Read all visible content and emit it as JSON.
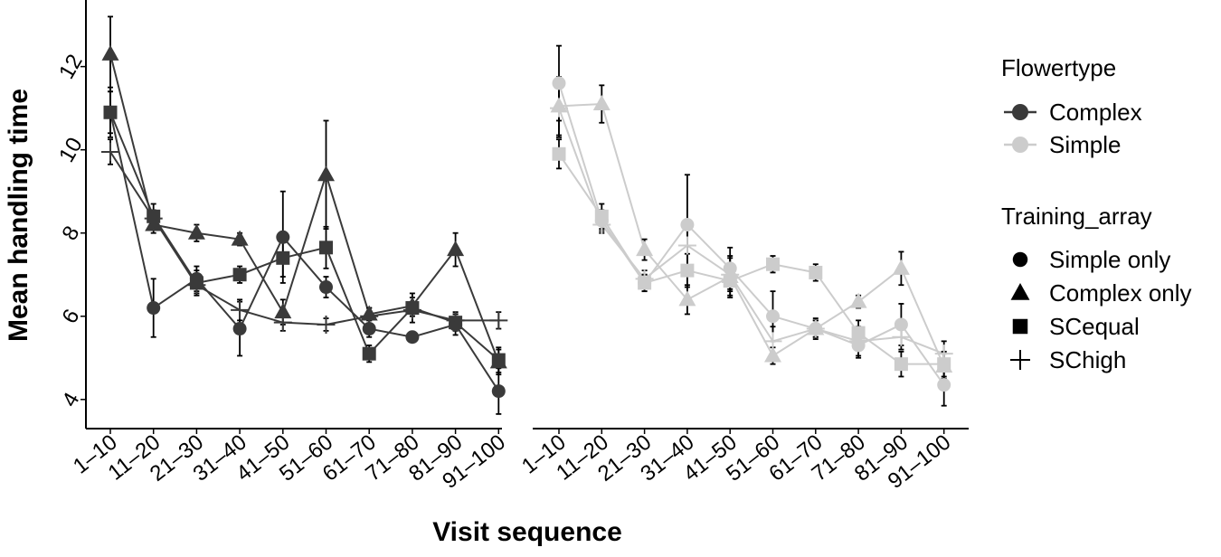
{
  "chart_data": {
    "type": "line",
    "xlabel": "Visit sequence",
    "ylabel": "Mean handling time",
    "ylim": [
      3.3,
      13.6
    ],
    "yticks": [
      4,
      6,
      8,
      10,
      12
    ],
    "categories": [
      "1–10",
      "11–20",
      "21–30",
      "31–40",
      "41–50",
      "51–60",
      "61–70",
      "71–80",
      "81–90",
      "91–100"
    ],
    "facet_var": "Flowertype",
    "panels": [
      "Complex",
      "Simple"
    ],
    "legend": {
      "position": "right",
      "flowertype": {
        "title": "Flowertype",
        "items": [
          {
            "label": "Complex",
            "color": "#3a3a3a"
          },
          {
            "label": "Simple",
            "color": "#cccccc"
          }
        ]
      },
      "training": {
        "title": "Training_array",
        "items": [
          {
            "label": "Simple only",
            "shape": "circle"
          },
          {
            "label": "Complex only",
            "shape": "triangle"
          },
          {
            "label": "SCequal",
            "shape": "square"
          },
          {
            "label": "SChigh",
            "shape": "plus"
          }
        ]
      }
    },
    "series": [
      {
        "panel": "Complex",
        "flowertype": "Complex",
        "training": "Simple only",
        "shape": "circle",
        "values": [
          10.9,
          6.2,
          6.9,
          5.7,
          7.9,
          6.7,
          5.7,
          5.5,
          5.8,
          4.2
        ],
        "errors": [
          0.6,
          0.7,
          0.3,
          0.65,
          1.1,
          0.25,
          0.2,
          0.1,
          0.25,
          0.55
        ]
      },
      {
        "panel": "Complex",
        "flowertype": "Complex",
        "training": "Complex only",
        "shape": "triangle",
        "values": [
          12.3,
          8.2,
          8.0,
          7.85,
          6.1,
          9.4,
          6.05,
          6.25,
          7.6,
          4.9
        ],
        "errors": [
          0.9,
          0.2,
          0.2,
          0.15,
          0.3,
          1.3,
          0.15,
          0.2,
          0.4,
          0.3
        ]
      },
      {
        "panel": "Complex",
        "flowertype": "Complex",
        "training": "SCequal",
        "shape": "square",
        "values": [
          10.9,
          8.4,
          6.8,
          7.0,
          7.4,
          7.65,
          5.1,
          6.2,
          5.85,
          4.95
        ],
        "errors": [
          0.5,
          0.3,
          0.3,
          0.2,
          0.45,
          0.5,
          0.2,
          0.35,
          0.2,
          0.3
        ]
      },
      {
        "panel": "Complex",
        "flowertype": "Complex",
        "training": "SChigh",
        "shape": "plus",
        "values": [
          9.95,
          8.35,
          6.75,
          6.15,
          5.85,
          5.8,
          6.0,
          6.15,
          5.9,
          5.9
        ],
        "errors": [
          0.3,
          0.2,
          0.2,
          0.25,
          0.2,
          0.15,
          0.2,
          0.15,
          0.2,
          0.2
        ]
      },
      {
        "panel": "Simple",
        "flowertype": "Simple",
        "training": "Simple only",
        "shape": "circle",
        "values": [
          11.6,
          8.3,
          6.8,
          8.2,
          7.15,
          6.0,
          5.7,
          5.3,
          5.8,
          4.35
        ],
        "errors": [
          0.9,
          0.25,
          0.2,
          1.2,
          0.5,
          0.6,
          0.2,
          0.3,
          0.5,
          0.5
        ]
      },
      {
        "panel": "Simple",
        "flowertype": "Simple",
        "training": "Complex only",
        "shape": "triangle",
        "values": [
          11.05,
          11.1,
          7.6,
          6.4,
          6.95,
          5.05,
          5.7,
          6.35,
          7.15,
          4.8
        ],
        "errors": [
          0.7,
          0.45,
          0.25,
          0.35,
          0.5,
          0.2,
          0.2,
          0.15,
          0.4,
          0.3
        ]
      },
      {
        "panel": "Simple",
        "flowertype": "Simple",
        "training": "SCequal",
        "shape": "square",
        "values": [
          9.9,
          8.4,
          6.8,
          7.1,
          6.85,
          7.25,
          7.05,
          5.6,
          4.85,
          4.85
        ],
        "errors": [
          0.35,
          0.3,
          0.2,
          0.4,
          0.35,
          0.2,
          0.2,
          0.3,
          0.3,
          0.3
        ]
      },
      {
        "panel": "Simple",
        "flowertype": "Simple",
        "training": "SChigh",
        "shape": "plus",
        "values": [
          11.0,
          8.2,
          6.9,
          7.7,
          7.0,
          5.4,
          5.7,
          5.4,
          5.5,
          5.1
        ],
        "errors": [
          0.7,
          0.2,
          0.2,
          0.5,
          0.4,
          0.35,
          0.25,
          0.35,
          0.3,
          0.3
        ]
      }
    ]
  }
}
